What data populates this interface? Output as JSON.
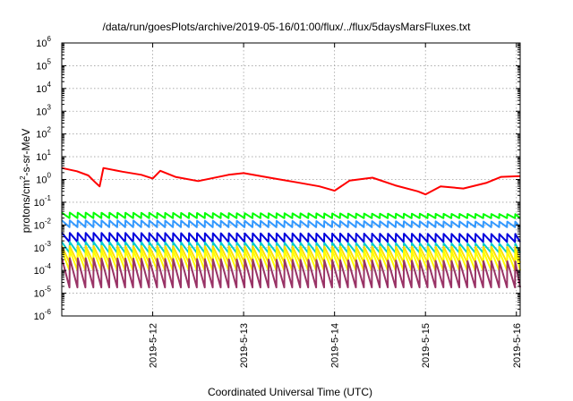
{
  "chart_data": {
    "type": "line",
    "title": "/data/run/goesPlots/archive/2019-05-16/01:00/flux/../flux/5daysMarsFluxes.txt",
    "xlabel": "Coordinated Universal Time (UTC)",
    "ylabel": {
      "prefix": "protons/cm",
      "sup": "2",
      "suffix": "-s-sr-MeV"
    },
    "yscale": "log",
    "ylim": [
      1e-06,
      1000000.0
    ],
    "xlim": [
      "2019-05-11 00:00",
      "2019-05-16 01:00"
    ],
    "grid": true,
    "xticks": [
      "2019-5-12",
      "2019-5-13",
      "2019-5-14",
      "2019-5-15",
      "2019-5-16"
    ],
    "yticks": [
      -6,
      -5,
      -4,
      -3,
      -2,
      -1,
      0,
      1,
      2,
      3,
      4,
      5,
      6
    ],
    "sawtooth_period_hours": 2.1,
    "series": [
      {
        "color": "#ff0000",
        "points": [
          [
            "2019-05-11 00:00",
            3.2
          ],
          [
            "2019-05-11 04:00",
            2.3
          ],
          [
            "2019-05-11 07:00",
            1.5
          ],
          [
            "2019-05-11 09:00",
            0.7
          ],
          [
            "2019-05-11 10:00",
            0.5
          ],
          [
            "2019-05-11 11:00",
            3.2
          ],
          [
            "2019-05-11 16:00",
            2.2
          ],
          [
            "2019-05-11 21:00",
            1.6
          ],
          [
            "2019-05-12 00:00",
            1.1
          ],
          [
            "2019-05-12 02:00",
            2.4
          ],
          [
            "2019-05-12 06:00",
            1.3
          ],
          [
            "2019-05-12 12:00",
            0.85
          ],
          [
            "2019-05-12 20:00",
            1.6
          ],
          [
            "2019-05-13 00:00",
            1.9
          ],
          [
            "2019-05-13 08:00",
            1.1
          ],
          [
            "2019-05-13 14:00",
            0.75
          ],
          [
            "2019-05-13 20:00",
            0.5
          ],
          [
            "2019-05-14 00:00",
            0.32
          ],
          [
            "2019-05-14 04:00",
            0.9
          ],
          [
            "2019-05-14 10:00",
            1.2
          ],
          [
            "2019-05-14 16:00",
            0.55
          ],
          [
            "2019-05-14 22:00",
            0.3
          ],
          [
            "2019-05-15 00:00",
            0.22
          ],
          [
            "2019-05-15 04:00",
            0.5
          ],
          [
            "2019-05-15 10:00",
            0.4
          ],
          [
            "2019-05-15 16:00",
            0.7
          ],
          [
            "2019-05-15 20:00",
            1.3
          ],
          [
            "2019-05-16 01:00",
            1.4
          ]
        ]
      },
      {
        "color": "#00ff00",
        "points": [
          [
            "2019-05-11 00:00",
            0.035
          ],
          [
            "2019-05-16 01:00",
            0.03
          ]
        ],
        "min": 0.02
      },
      {
        "color": "#3399ff",
        "points": [
          [
            "2019-05-11 00:00",
            0.016
          ],
          [
            "2019-05-16 01:00",
            0.014
          ]
        ],
        "min": 0.008
      },
      {
        "color": "#0000dd",
        "points": [
          [
            "2019-05-11 00:00",
            0.0045
          ],
          [
            "2019-05-16 01:00",
            0.004
          ]
        ],
        "min": 0.0018
      },
      {
        "color": "#00cccc",
        "points": [
          [
            "2019-05-11 00:00",
            0.0018
          ],
          [
            "2019-05-16 01:00",
            0.0015
          ]
        ],
        "min": 0.0006
      },
      {
        "color": "#ffe000",
        "points": [
          [
            "2019-05-11 00:00",
            0.0012
          ],
          [
            "2019-05-16 01:00",
            0.0011
          ]
        ],
        "min": 0.00022
      },
      {
        "color": "#ffff00",
        "points": [
          [
            "2019-05-11 00:00",
            0.0008
          ],
          [
            "2019-05-16 01:00",
            0.0007
          ]
        ],
        "min": 0.0001
      },
      {
        "color": "#993366",
        "points": [
          [
            "2019-05-11 00:00",
            0.00035
          ],
          [
            "2019-05-16 01:00",
            0.00025
          ]
        ],
        "min": 1.8e-05
      }
    ]
  }
}
